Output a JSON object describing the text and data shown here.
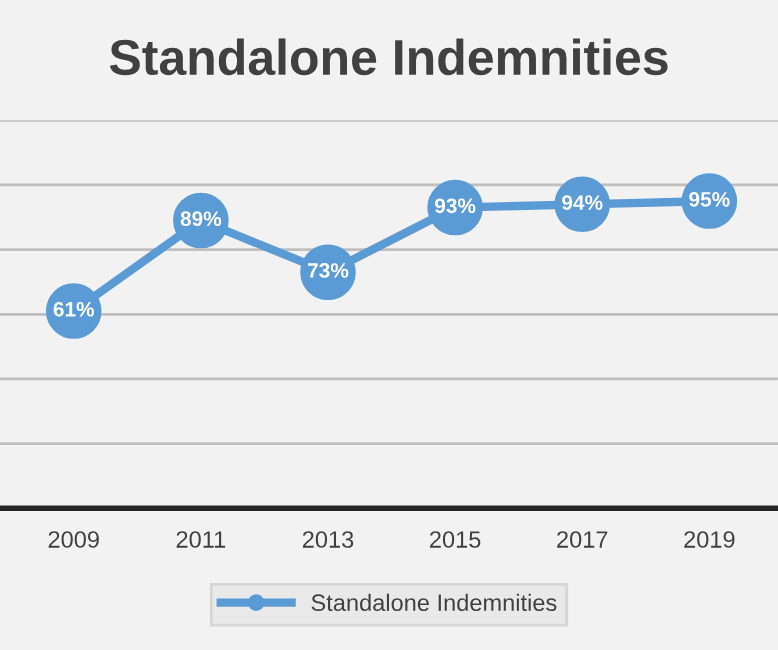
{
  "chart_data": {
    "type": "line",
    "title": "Standalone Indemnities",
    "categories": [
      "2009",
      "2011",
      "2013",
      "2015",
      "2017",
      "2019"
    ],
    "series": [
      {
        "name": "Standalone Indemnities",
        "color": "#5b9bd5",
        "values": [
          61,
          89,
          73,
          93,
          94,
          95
        ],
        "value_labels": [
          "61%",
          "89%",
          "73%",
          "93%",
          "94%",
          "95%"
        ]
      }
    ],
    "ylim": [
      0,
      120
    ],
    "yticks": [
      {
        "value": 0,
        "label": null
      },
      {
        "value": 20,
        "label": null
      },
      {
        "value": 40,
        "label": null
      },
      {
        "value": 60,
        "label": null
      },
      {
        "value": 80,
        "label": null
      },
      {
        "value": 100,
        "label": null
      },
      {
        "value": 120,
        "label": null
      }
    ],
    "grid": "y",
    "legend": "bottom",
    "marker": "circle",
    "line_style": "solid"
  }
}
